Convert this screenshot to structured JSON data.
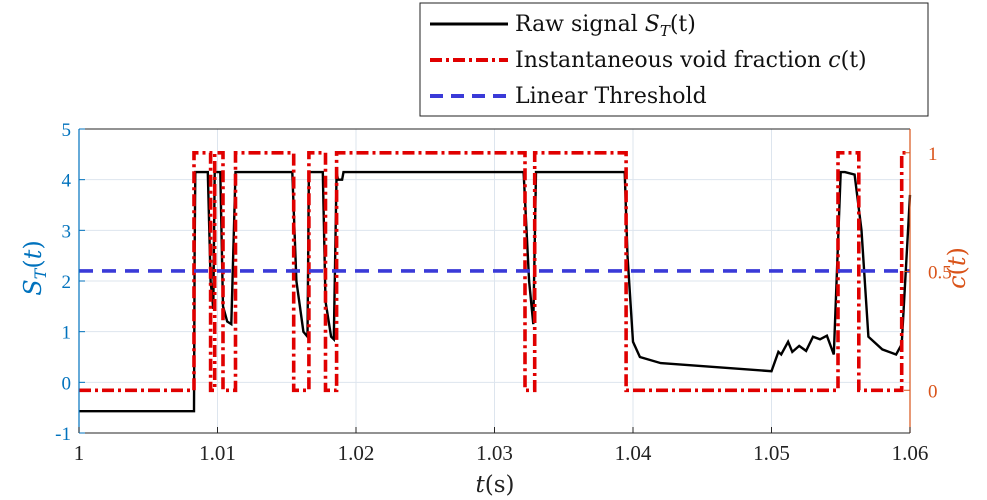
{
  "chart_data": {
    "type": "line",
    "xlabel": "t(s)",
    "ylabel_left": "S_T(t)",
    "ylabel_right": "c(t)",
    "xlim": [
      1,
      1.06
    ],
    "ylim_left": [
      -1,
      5
    ],
    "ylim_right": [
      -0.18,
      1.1
    ],
    "grid": true,
    "legend_placement": "top-right",
    "x_ticks": [
      "1",
      "1.01",
      "1.02",
      "1.03",
      "1.04",
      "1.05",
      "1.06"
    ],
    "x_tick_values": [
      1,
      1.01,
      1.02,
      1.03,
      1.04,
      1.05,
      1.06
    ],
    "y_ticks_left": [
      "-1",
      "0",
      "1",
      "2",
      "3",
      "4",
      "5"
    ],
    "y_tick_values_left": [
      -1,
      0,
      1,
      2,
      3,
      4,
      5
    ],
    "y_ticks_right": [
      "0",
      "0.5",
      "1"
    ],
    "y_tick_values_right": [
      0,
      0.5,
      1
    ],
    "colors": {
      "left_axis": "#0072BD",
      "right_axis": "#D95319",
      "raw": "#000000",
      "void": "#E00000",
      "threshold": "#3A3AD8"
    },
    "series": [
      {
        "name": "Raw signal S_T(t)",
        "axis": "left",
        "style": "solid",
        "x": [
          1.0,
          1.0083,
          1.00835,
          1.0084,
          1.0093,
          1.0095,
          1.0097,
          1.0098,
          1.0102,
          1.0104,
          1.0107,
          1.011,
          1.0113,
          1.0114,
          1.0154,
          1.0157,
          1.0162,
          1.0165,
          1.0166,
          1.0168,
          1.0176,
          1.0178,
          1.0182,
          1.0184,
          1.0186,
          1.0187,
          1.019,
          1.0191,
          1.0321,
          1.0325,
          1.0328,
          1.033,
          1.0394,
          1.0396,
          1.04,
          1.0405,
          1.042,
          1.05,
          1.0505,
          1.0507,
          1.0512,
          1.0515,
          1.052,
          1.0525,
          1.053,
          1.0535,
          1.054,
          1.0545,
          1.055,
          1.0553,
          1.056,
          1.0565,
          1.057,
          1.058,
          1.059,
          1.0594,
          1.06
        ],
        "values": [
          -0.57,
          -0.57,
          2.5,
          4.15,
          4.15,
          2.0,
          1.45,
          4.15,
          4.15,
          1.5,
          1.2,
          1.15,
          4.15,
          4.15,
          4.15,
          2.0,
          1.0,
          0.9,
          4.15,
          4.15,
          4.15,
          1.6,
          0.9,
          0.85,
          4.15,
          4.0,
          4.0,
          4.15,
          4.15,
          2.0,
          1.15,
          4.15,
          4.15,
          2.5,
          0.8,
          0.5,
          0.38,
          0.22,
          0.6,
          0.55,
          0.8,
          0.6,
          0.72,
          0.62,
          0.9,
          0.85,
          0.92,
          0.55,
          4.15,
          4.15,
          4.1,
          3.0,
          0.9,
          0.65,
          0.55,
          0.75,
          3.7
        ]
      },
      {
        "name": "Instantaneous void fraction c(t)",
        "axis": "right",
        "style": "dash-dot",
        "x": [
          1.0,
          1.0083,
          1.0083,
          1.0095,
          1.0095,
          1.0098,
          1.0098,
          1.0104,
          1.0104,
          1.0113,
          1.0113,
          1.0155,
          1.0155,
          1.0166,
          1.0166,
          1.0178,
          1.0178,
          1.0186,
          1.0186,
          1.0322,
          1.0322,
          1.0329,
          1.0329,
          1.0395,
          1.0395,
          1.0548,
          1.0548,
          1.0563,
          1.0563,
          1.0594,
          1.0594,
          1.06
        ],
        "values": [
          0,
          0,
          1,
          1,
          0,
          0,
          1,
          1,
          0,
          0,
          1,
          1,
          0,
          0,
          1,
          1,
          0,
          0,
          1,
          1,
          0,
          0,
          1,
          1,
          0,
          0,
          1,
          1,
          0,
          0,
          1,
          1
        ]
      },
      {
        "name": "Linear Threshold",
        "axis": "left",
        "style": "dashed",
        "x": [
          1.0,
          1.06
        ],
        "values": [
          2.2,
          2.2
        ]
      }
    ]
  },
  "legend": {
    "entries": [
      {
        "prefix": "Raw signal ",
        "math": "S",
        "sub": "T",
        "suffix": "(t)"
      },
      {
        "prefix": "Instantaneous void fraction ",
        "math": "c",
        "sub": "",
        "suffix": "(t)"
      },
      {
        "prefix": "Linear Threshold",
        "math": "",
        "sub": "",
        "suffix": ""
      }
    ]
  }
}
